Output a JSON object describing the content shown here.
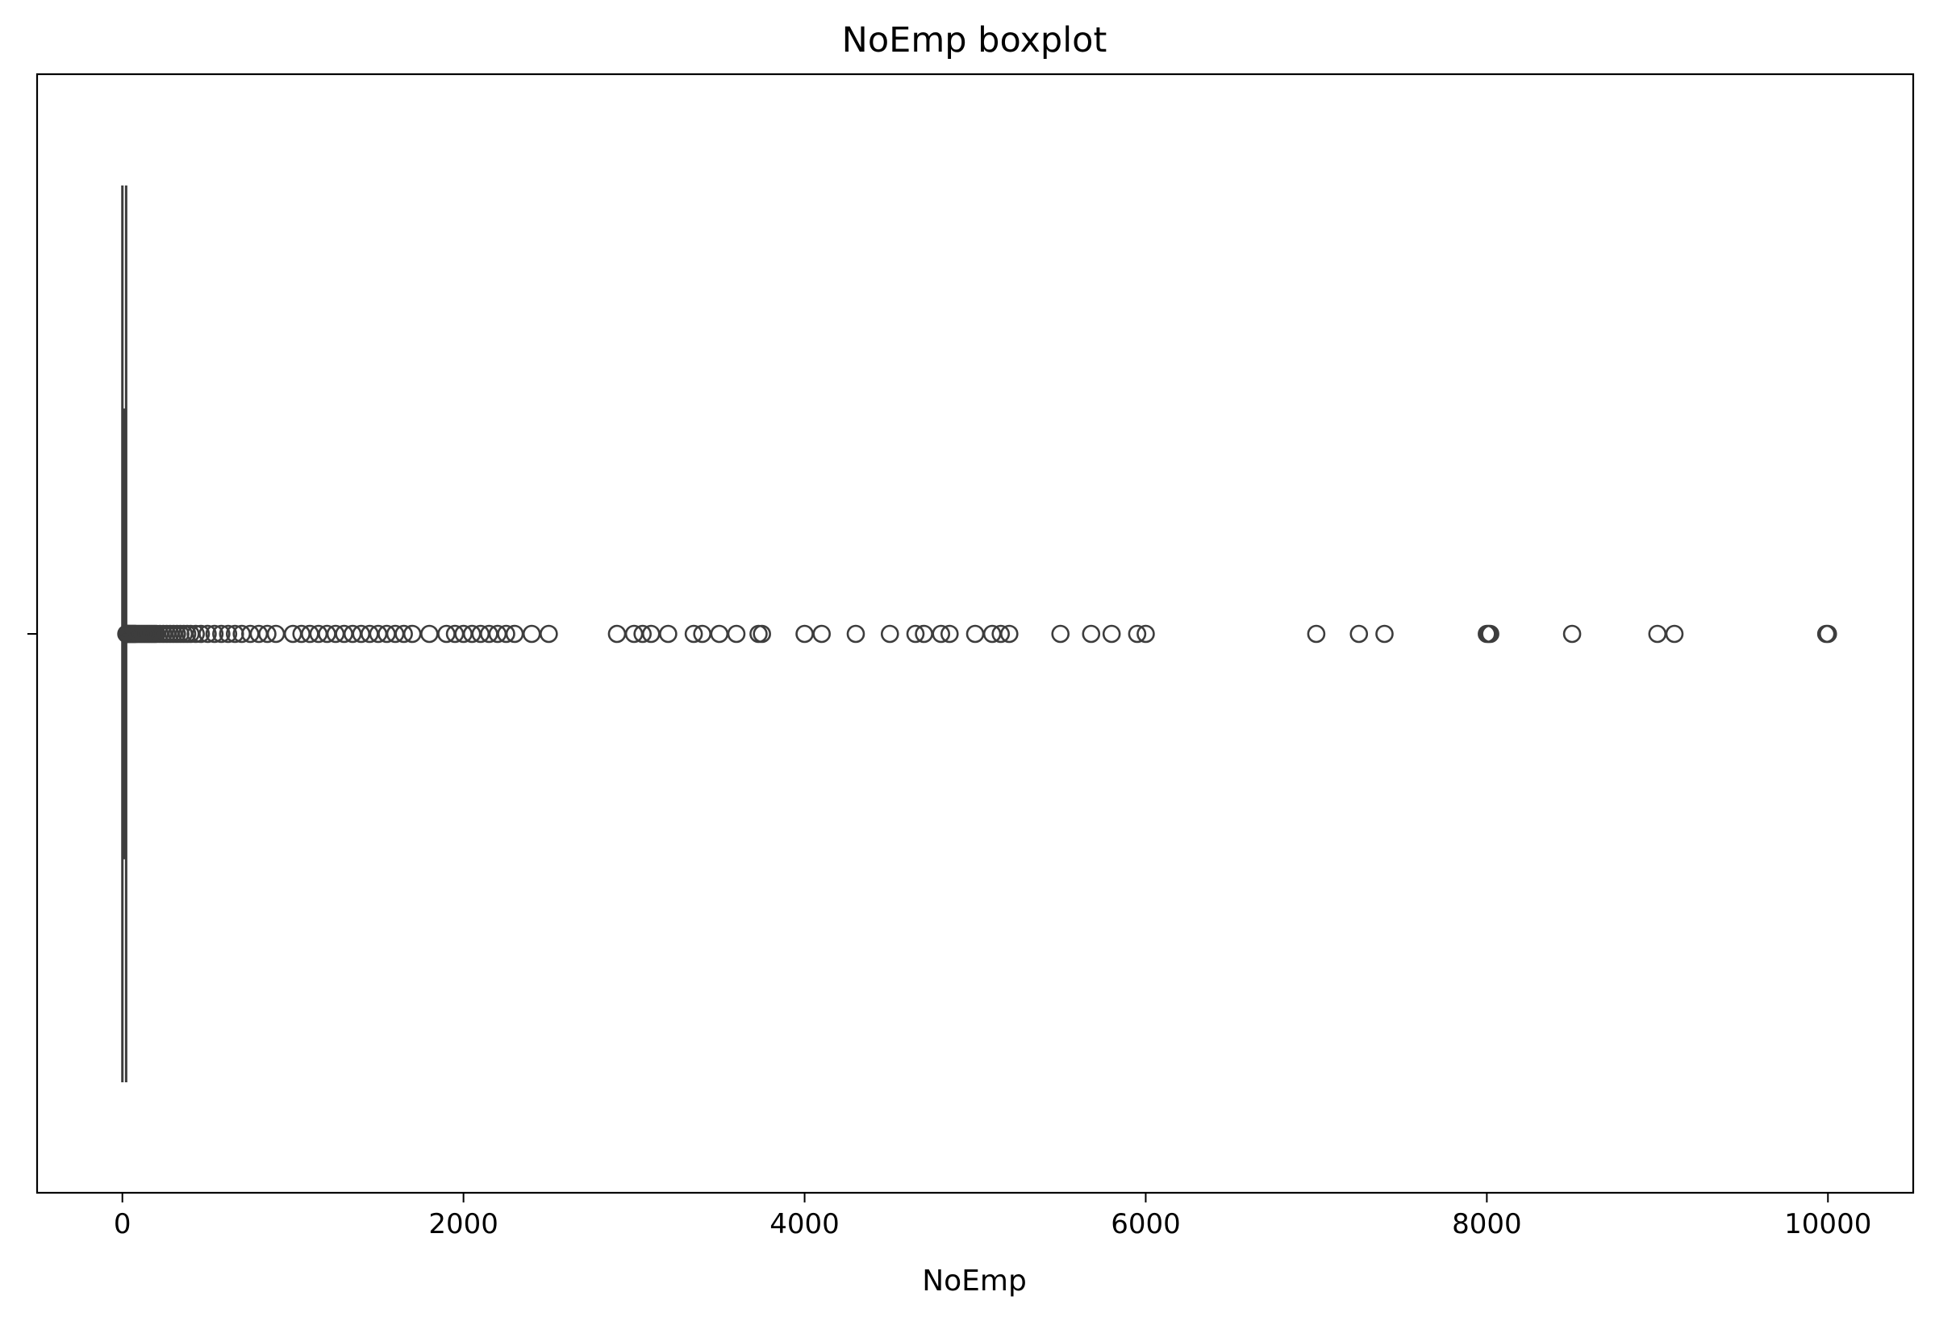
{
  "chart_data": {
    "type": "boxplot",
    "orientation": "horizontal",
    "title": "NoEmp boxplot",
    "xlabel": "NoEmp",
    "ylabel": "",
    "xlim": [
      -500,
      10500
    ],
    "xticks": [
      0,
      2000,
      4000,
      6000,
      8000,
      10000
    ],
    "xtick_labels": [
      "0",
      "2000",
      "4000",
      "6000",
      "8000",
      "10000"
    ],
    "grid": false,
    "legend": "none",
    "box": {
      "whisker_low": 0,
      "q1": 2,
      "median": 4,
      "q3": 10,
      "whisker_high": 22
    },
    "outliers": [
      23,
      25,
      28,
      30,
      33,
      36,
      40,
      45,
      50,
      55,
      60,
      65,
      70,
      75,
      80,
      90,
      100,
      110,
      120,
      130,
      140,
      150,
      160,
      170,
      180,
      190,
      200,
      220,
      240,
      260,
      280,
      300,
      320,
      340,
      360,
      380,
      400,
      430,
      460,
      500,
      540,
      580,
      620,
      660,
      700,
      750,
      800,
      850,
      900,
      1000,
      1050,
      1100,
      1150,
      1200,
      1250,
      1300,
      1350,
      1400,
      1450,
      1500,
      1550,
      1600,
      1650,
      1700,
      1800,
      1900,
      1950,
      2000,
      2050,
      2100,
      2150,
      2200,
      2250,
      2300,
      2400,
      2500,
      2900,
      3000,
      3050,
      3100,
      3200,
      3350,
      3400,
      3500,
      3600,
      3730,
      3750,
      4000,
      4100,
      4300,
      4500,
      4650,
      4700,
      4800,
      4850,
      5000,
      5100,
      5150,
      5200,
      5500,
      5680,
      5800,
      5950,
      6000,
      7000,
      7250,
      7400,
      8000,
      8010,
      8020,
      8500,
      9000,
      9100,
      9990,
      10000
    ],
    "colors": {
      "box_edge": "#3d3d3d",
      "outlier_edge": "#3d3d3d",
      "axes": "#000000",
      "background": "#ffffff"
    }
  }
}
